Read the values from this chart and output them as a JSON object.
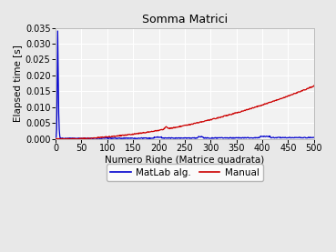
{
  "title": "Somma Matrici",
  "xlabel": "Numero Righe (Matrice quadrata)",
  "ylabel": "Elapsed time [s]",
  "xlim": [
    0,
    500
  ],
  "ylim": [
    0,
    0.035
  ],
  "yticks": [
    0,
    0.005,
    0.01,
    0.015,
    0.02,
    0.025,
    0.03,
    0.035
  ],
  "xticks": [
    0,
    50,
    100,
    150,
    200,
    250,
    300,
    350,
    400,
    450,
    500
  ],
  "legend": [
    "MatLab alg.",
    "Manual"
  ],
  "blue_color": "#0000cd",
  "red_color": "#cc0000",
  "plot_bg_color": "#f2f2f2",
  "fig_bg_color": "#e8e8e8",
  "grid_color": "#ffffff",
  "title_fontsize": 9,
  "label_fontsize": 7.5,
  "tick_fontsize": 7,
  "legend_fontsize": 7.5
}
